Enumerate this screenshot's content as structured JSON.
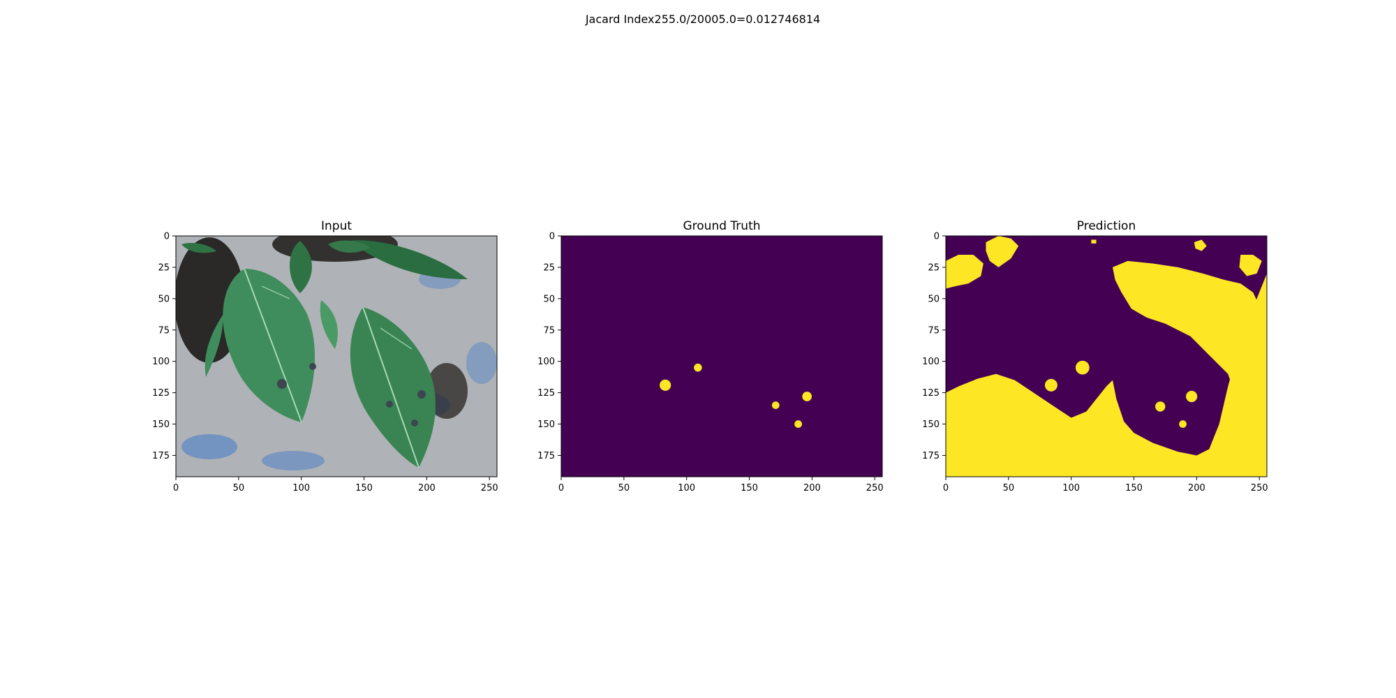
{
  "figure": {
    "suptitle": "Jacard Index255.0/20005.0=0.012746814"
  },
  "colors": {
    "mask_background": "#440154",
    "mask_foreground": "#fde725",
    "axes_frame": "#000000"
  },
  "chart_data": [
    {
      "type": "heatmap",
      "title": "Input",
      "content": "RGB photo of green leaves with dark spots on gravel",
      "xlim": [
        0,
        256
      ],
      "ylim": [
        192,
        0
      ],
      "xticks": [
        0,
        50,
        100,
        150,
        200,
        250
      ],
      "yticks": [
        0,
        25,
        50,
        75,
        100,
        125,
        150,
        175
      ],
      "grid": false
    },
    {
      "type": "heatmap",
      "title": "Ground Truth",
      "content": "binary mask",
      "xlim": [
        0,
        256
      ],
      "ylim": [
        192,
        0
      ],
      "xticks": [
        0,
        50,
        100,
        150,
        200,
        250
      ],
      "yticks": [
        0,
        25,
        50,
        75,
        100,
        125,
        150,
        175
      ],
      "grid": false,
      "blobs": [
        {
          "x": 83,
          "y": 119,
          "r": 4.5
        },
        {
          "x": 109,
          "y": 105,
          "r": 3.2
        },
        {
          "x": 171,
          "y": 135,
          "r": 3.0
        },
        {
          "x": 196,
          "y": 128,
          "r": 3.8
        },
        {
          "x": 189,
          "y": 150,
          "r": 3.0
        }
      ]
    },
    {
      "type": "heatmap",
      "title": "Prediction",
      "content": "binary mask",
      "xlim": [
        0,
        256
      ],
      "ylim": [
        192,
        0
      ],
      "xticks": [
        0,
        50,
        100,
        150,
        200,
        250
      ],
      "yticks": [
        0,
        25,
        50,
        75,
        100,
        125,
        150,
        175
      ],
      "grid": false,
      "blobs": [
        {
          "x": 84,
          "y": 119,
          "r": 5.0
        },
        {
          "x": 109,
          "y": 105,
          "r": 5.5
        },
        {
          "x": 171,
          "y": 136,
          "r": 4.0
        },
        {
          "x": 196,
          "y": 128,
          "r": 4.5
        },
        {
          "x": 189,
          "y": 150,
          "r": 3.0
        }
      ],
      "regions": [
        [
          [
            0,
            125
          ],
          [
            10,
            120
          ],
          [
            25,
            114
          ],
          [
            40,
            110
          ],
          [
            55,
            115
          ],
          [
            70,
            125
          ],
          [
            85,
            135
          ],
          [
            100,
            145
          ],
          [
            112,
            140
          ],
          [
            120,
            130
          ],
          [
            128,
            120
          ],
          [
            133,
            115
          ],
          [
            136,
            130
          ],
          [
            142,
            148
          ],
          [
            150,
            157
          ],
          [
            165,
            165
          ],
          [
            185,
            172
          ],
          [
            200,
            175
          ],
          [
            210,
            170
          ],
          [
            218,
            150
          ],
          [
            225,
            120
          ],
          [
            232,
            95
          ],
          [
            238,
            75
          ],
          [
            244,
            60
          ],
          [
            250,
            45
          ],
          [
            256,
            30
          ],
          [
            256,
            192
          ],
          [
            0,
            192
          ]
        ],
        [
          [
            133,
            25
          ],
          [
            145,
            20
          ],
          [
            165,
            22
          ],
          [
            185,
            25
          ],
          [
            205,
            30
          ],
          [
            222,
            35
          ],
          [
            235,
            38
          ],
          [
            245,
            45
          ],
          [
            252,
            60
          ],
          [
            256,
            75
          ],
          [
            256,
            192
          ],
          [
            240,
            192
          ],
          [
            236,
            160
          ],
          [
            232,
            130
          ],
          [
            225,
            110
          ],
          [
            210,
            95
          ],
          [
            195,
            80
          ],
          [
            175,
            70
          ],
          [
            160,
            65
          ],
          [
            148,
            58
          ],
          [
            140,
            45
          ],
          [
            135,
            35
          ]
        ],
        [
          [
            0,
            20
          ],
          [
            10,
            15
          ],
          [
            22,
            15
          ],
          [
            30,
            22
          ],
          [
            28,
            32
          ],
          [
            18,
            38
          ],
          [
            8,
            40
          ],
          [
            0,
            42
          ]
        ],
        [
          [
            32,
            5
          ],
          [
            42,
            0
          ],
          [
            52,
            2
          ],
          [
            58,
            8
          ],
          [
            52,
            18
          ],
          [
            42,
            25
          ],
          [
            35,
            20
          ],
          [
            32,
            12
          ]
        ],
        [
          [
            198,
            5
          ],
          [
            204,
            3
          ],
          [
            208,
            8
          ],
          [
            204,
            12
          ],
          [
            199,
            10
          ]
        ],
        [
          [
            235,
            15
          ],
          [
            245,
            15
          ],
          [
            252,
            20
          ],
          [
            248,
            30
          ],
          [
            240,
            32
          ],
          [
            234,
            25
          ]
        ],
        [
          [
            116,
            3
          ],
          [
            120,
            3
          ],
          [
            120,
            6
          ],
          [
            116,
            6
          ]
        ]
      ]
    }
  ]
}
